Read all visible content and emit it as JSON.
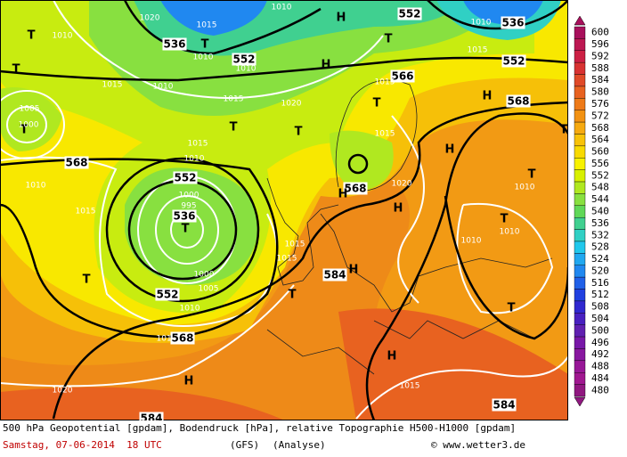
{
  "map": {
    "map_labels": [
      "1020",
      "T",
      "1010",
      "536",
      "1015",
      "1010",
      "H",
      "552",
      "1010",
      "536",
      "T",
      "1010",
      "552",
      "1010",
      "H",
      "T",
      "552",
      "1015",
      "T",
      "1015",
      "1010",
      "1015",
      "566",
      "1015",
      "H",
      "568",
      "1005",
      "1020",
      "T",
      "T",
      "1000",
      "T",
      "T",
      "1015",
      "T",
      "1015",
      "H",
      "1010",
      "568",
      "552",
      "T",
      "1010",
      "1000",
      "568",
      "H",
      "1020",
      "1010",
      "995",
      "1015",
      "536",
      "H",
      "T",
      "T",
      "1010",
      "1015",
      "1010",
      "1015",
      "584",
      "H",
      "T",
      "1000",
      "552",
      "1005",
      "T",
      "T",
      "1010",
      "1015",
      "568",
      "H",
      "H",
      "1015",
      "1020",
      "584",
      "584"
    ],
    "legend": [
      {
        "value": 600,
        "color": "#a8105c"
      },
      {
        "value": 596,
        "color": "#bc1852"
      },
      {
        "value": 592,
        "color": "#cc2044"
      },
      {
        "value": 588,
        "color": "#d83232"
      },
      {
        "value": 584,
        "color": "#e04a28"
      },
      {
        "value": 580,
        "color": "#e86220"
      },
      {
        "value": 576,
        "color": "#ee7a18"
      },
      {
        "value": 572,
        "color": "#f29212"
      },
      {
        "value": 568,
        "color": "#f6aa10"
      },
      {
        "value": 564,
        "color": "#f8c208"
      },
      {
        "value": 560,
        "color": "#f8da00"
      },
      {
        "value": 556,
        "color": "#f8f200"
      },
      {
        "value": 552,
        "color": "#d8f000"
      },
      {
        "value": 548,
        "color": "#b0e820"
      },
      {
        "value": 544,
        "color": "#88e040"
      },
      {
        "value": 540,
        "color": "#60d858"
      },
      {
        "value": 536,
        "color": "#40d090"
      },
      {
        "value": 532,
        "color": "#30d0c4"
      },
      {
        "value": 528,
        "color": "#20c8ec"
      },
      {
        "value": 524,
        "color": "#20a8f0"
      },
      {
        "value": 520,
        "color": "#2088f0"
      },
      {
        "value": 516,
        "color": "#2060e8"
      },
      {
        "value": 512,
        "color": "#2040e0"
      },
      {
        "value": 508,
        "color": "#3028d0"
      },
      {
        "value": 504,
        "color": "#4820c0"
      },
      {
        "value": 500,
        "color": "#6020b0"
      },
      {
        "value": 496,
        "color": "#7818a8"
      },
      {
        "value": 492,
        "color": "#8818a0"
      },
      {
        "value": 488,
        "color": "#981898"
      },
      {
        "value": 484,
        "color": "#a01890"
      },
      {
        "value": 480,
        "color": "#901880"
      }
    ],
    "caption": "500 hPa Geopotential [gpdam], Bodendruck [hPa], relative Topographie H500-H1000 [gpdam]",
    "date": "Samstag, 07-06-2014  18 UTC",
    "model": "(GFS)",
    "run": "(Analyse)",
    "credit": "© www.wetter3.de"
  }
}
